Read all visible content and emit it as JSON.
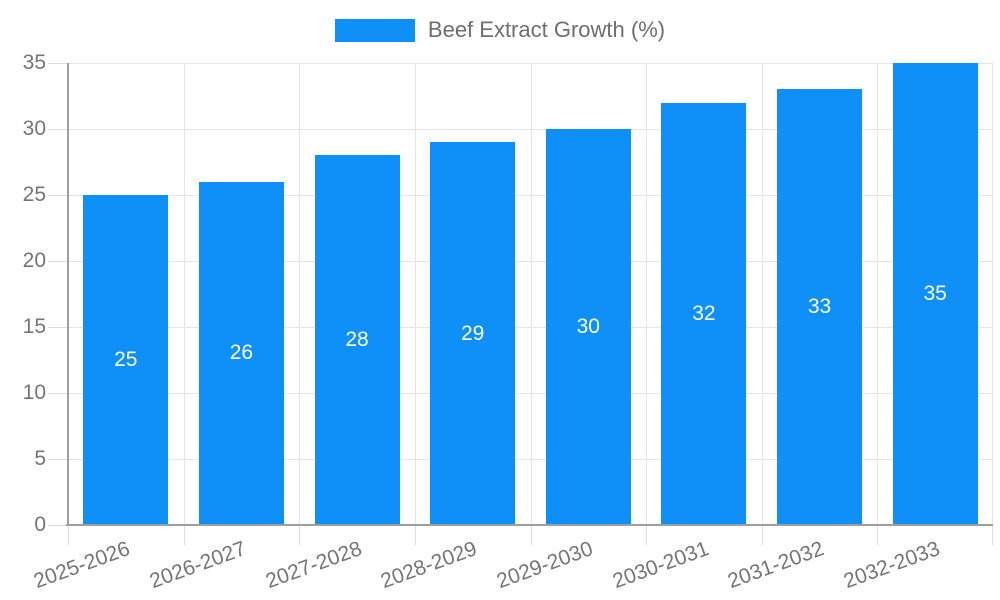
{
  "chart_data": {
    "type": "bar",
    "title": "Beef Extract Growth (%)",
    "legend": [
      "Beef Extract Growth (%)"
    ],
    "legend_position": "top-center",
    "categories": [
      "2025-2026",
      "2026-2027",
      "2027-2028",
      "2028-2029",
      "2029-2030",
      "2030-2031",
      "2031-2032",
      "2032-2033"
    ],
    "values": [
      25,
      26,
      28,
      29,
      30,
      32,
      33,
      35
    ],
    "xlabel": "",
    "ylabel": "",
    "ylim": [
      0,
      35
    ],
    "ytick_step": 5,
    "yticks": [
      0,
      5,
      10,
      15,
      20,
      25,
      30,
      35
    ],
    "grid": true,
    "value_labels": "inside-center",
    "colors": {
      "bar": "#0e90f8",
      "grid": "#e5e5e5",
      "tick": "#dcdcdc",
      "axis": "#9e9e9e",
      "text": "#757575",
      "value_label": "#ffffff",
      "background": "#ffffff"
    }
  }
}
